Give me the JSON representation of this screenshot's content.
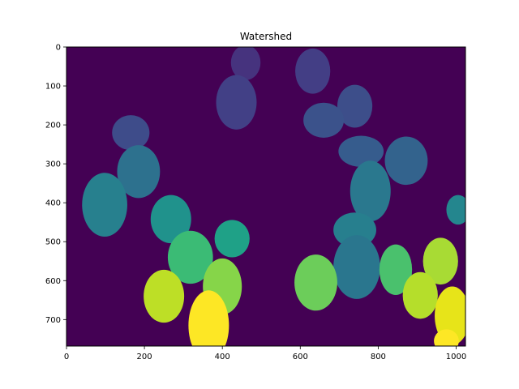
{
  "chart_data": {
    "type": "heatmap",
    "title": "Watershed",
    "xlabel": "",
    "ylabel": "",
    "colormap": "viridis",
    "background_color": "#440154",
    "xlim": [
      0,
      1024
    ],
    "ylim": [
      768,
      0
    ],
    "x_ticks": [
      0,
      200,
      400,
      600,
      800,
      1000
    ],
    "y_ticks": [
      0,
      100,
      200,
      300,
      400,
      500,
      600,
      700
    ],
    "grid": false,
    "segments": [
      {
        "label": 1,
        "cx": 460,
        "cy": 40,
        "rx": 38,
        "ry": 45,
        "color": "#46337e"
      },
      {
        "label": 2,
        "cx": 632,
        "cy": 62,
        "rx": 45,
        "ry": 58,
        "color": "#433e85"
      },
      {
        "label": 3,
        "cx": 436,
        "cy": 142,
        "rx": 52,
        "ry": 70,
        "color": "#424086"
      },
      {
        "label": 4,
        "cx": 740,
        "cy": 152,
        "rx": 45,
        "ry": 55,
        "color": "#3d4e8a"
      },
      {
        "label": 5,
        "cx": 660,
        "cy": 188,
        "rx": 52,
        "ry": 45,
        "color": "#3b528b"
      },
      {
        "label": 6,
        "cx": 165,
        "cy": 220,
        "rx": 48,
        "ry": 45,
        "color": "#3e4c8a"
      },
      {
        "label": 7,
        "cx": 756,
        "cy": 268,
        "rx": 58,
        "ry": 40,
        "color": "#365c8d"
      },
      {
        "label": 8,
        "cx": 872,
        "cy": 292,
        "rx": 55,
        "ry": 62,
        "color": "#33638d"
      },
      {
        "label": 9,
        "cx": 185,
        "cy": 320,
        "rx": 55,
        "ry": 68,
        "color": "#2d718e"
      },
      {
        "label": 10,
        "cx": 780,
        "cy": 370,
        "rx": 52,
        "ry": 78,
        "color": "#2a788e"
      },
      {
        "label": 11,
        "cx": 98,
        "cy": 405,
        "rx": 58,
        "ry": 82,
        "color": "#27808e"
      },
      {
        "label": 12,
        "cx": 1005,
        "cy": 418,
        "rx": 30,
        "ry": 38,
        "color": "#24868e"
      },
      {
        "label": 13,
        "cx": 740,
        "cy": 470,
        "rx": 55,
        "ry": 45,
        "color": "#277f8e"
      },
      {
        "label": 14,
        "cx": 268,
        "cy": 442,
        "rx": 52,
        "ry": 62,
        "color": "#20928c"
      },
      {
        "label": 15,
        "cx": 425,
        "cy": 492,
        "rx": 45,
        "ry": 48,
        "color": "#1fa187"
      },
      {
        "label": 16,
        "cx": 745,
        "cy": 565,
        "rx": 60,
        "ry": 82,
        "color": "#2a768e"
      },
      {
        "label": 17,
        "cx": 318,
        "cy": 540,
        "rx": 58,
        "ry": 68,
        "color": "#3bbb75"
      },
      {
        "label": 18,
        "cx": 845,
        "cy": 572,
        "rx": 42,
        "ry": 65,
        "color": "#4ac16d"
      },
      {
        "label": 19,
        "cx": 640,
        "cy": 605,
        "rx": 55,
        "ry": 72,
        "color": "#6ccd5a"
      },
      {
        "label": 20,
        "cx": 960,
        "cy": 550,
        "rx": 45,
        "ry": 60,
        "color": "#a8db34"
      },
      {
        "label": 21,
        "cx": 400,
        "cy": 615,
        "rx": 50,
        "ry": 72,
        "color": "#86d549"
      },
      {
        "label": 22,
        "cx": 908,
        "cy": 638,
        "rx": 45,
        "ry": 60,
        "color": "#b5de2b"
      },
      {
        "label": 23,
        "cx": 250,
        "cy": 640,
        "rx": 52,
        "ry": 68,
        "color": "#bddf26"
      },
      {
        "label": 24,
        "cx": 990,
        "cy": 690,
        "rx": 45,
        "ry": 75,
        "color": "#e7e419"
      },
      {
        "label": 25,
        "cx": 365,
        "cy": 715,
        "rx": 52,
        "ry": 90,
        "color": "#fde725"
      },
      {
        "label": 26,
        "cx": 975,
        "cy": 755,
        "rx": 32,
        "ry": 30,
        "color": "#fde725"
      }
    ]
  }
}
